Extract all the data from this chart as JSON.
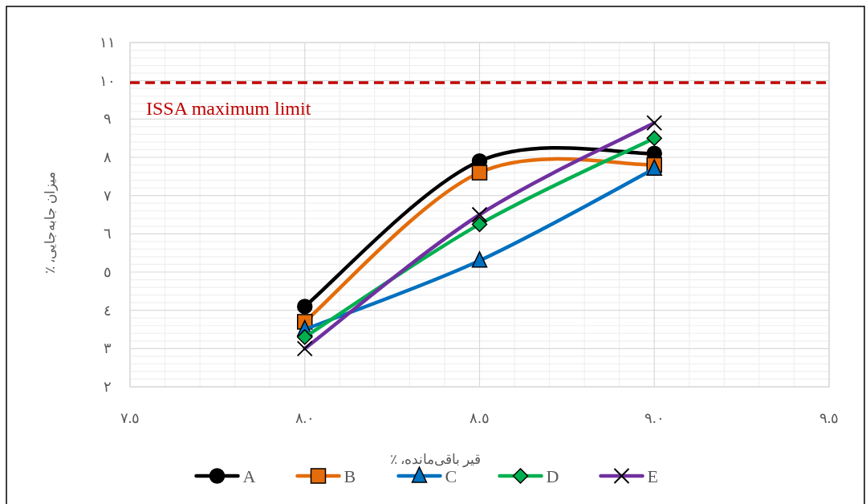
{
  "chart_data": {
    "type": "line",
    "xlabel": "قیر باقی‌مانده، ٪",
    "ylabel": "میزان جابه‌جایی، ٪",
    "xlim": [
      7.5,
      9.5
    ],
    "xticks": [
      {
        "value": 7.5,
        "label": "٧.٥"
      },
      {
        "value": 8.0,
        "label": "٨.٠"
      },
      {
        "value": 8.5,
        "label": "٨.٥"
      },
      {
        "value": 9.0,
        "label": "٩.٠"
      },
      {
        "value": 9.5,
        "label": "٩.٥"
      }
    ],
    "ylim": [
      2,
      11
    ],
    "yticks": [
      {
        "value": 2,
        "label": "٢"
      },
      {
        "value": 3,
        "label": "٣"
      },
      {
        "value": 4,
        "label": "٤"
      },
      {
        "value": 5,
        "label": "٥"
      },
      {
        "value": 6,
        "label": "٦"
      },
      {
        "value": 7,
        "label": "٧"
      },
      {
        "value": 8,
        "label": "٨"
      },
      {
        "value": 9,
        "label": "٩"
      },
      {
        "value": 10,
        "label": "١٠"
      },
      {
        "value": 11,
        "label": "١١"
      }
    ],
    "x": [
      8.0,
      8.5,
      9.0
    ],
    "series": [
      {
        "name": "A",
        "color": "#000000",
        "marker": "circle",
        "values": [
          4.1,
          7.9,
          8.1
        ]
      },
      {
        "name": "B",
        "color": "#e46c0a",
        "marker": "square",
        "values": [
          3.7,
          7.6,
          7.8
        ]
      },
      {
        "name": "C",
        "color": "#0070c0",
        "marker": "triangle",
        "values": [
          3.5,
          5.3,
          7.7
        ]
      },
      {
        "name": "D",
        "color": "#00b050",
        "marker": "diamond",
        "values": [
          3.3,
          6.25,
          8.5
        ]
      },
      {
        "name": "E",
        "color": "#7030a0",
        "marker": "cross",
        "values": [
          3.0,
          6.5,
          8.9
        ]
      }
    ],
    "ref_lines": [
      {
        "axis": "y",
        "value": 9.95,
        "label": "ISSA maximum limit",
        "color": "#c00000",
        "line_style": "dashed"
      }
    ],
    "grid": true,
    "legend": "bottom"
  }
}
